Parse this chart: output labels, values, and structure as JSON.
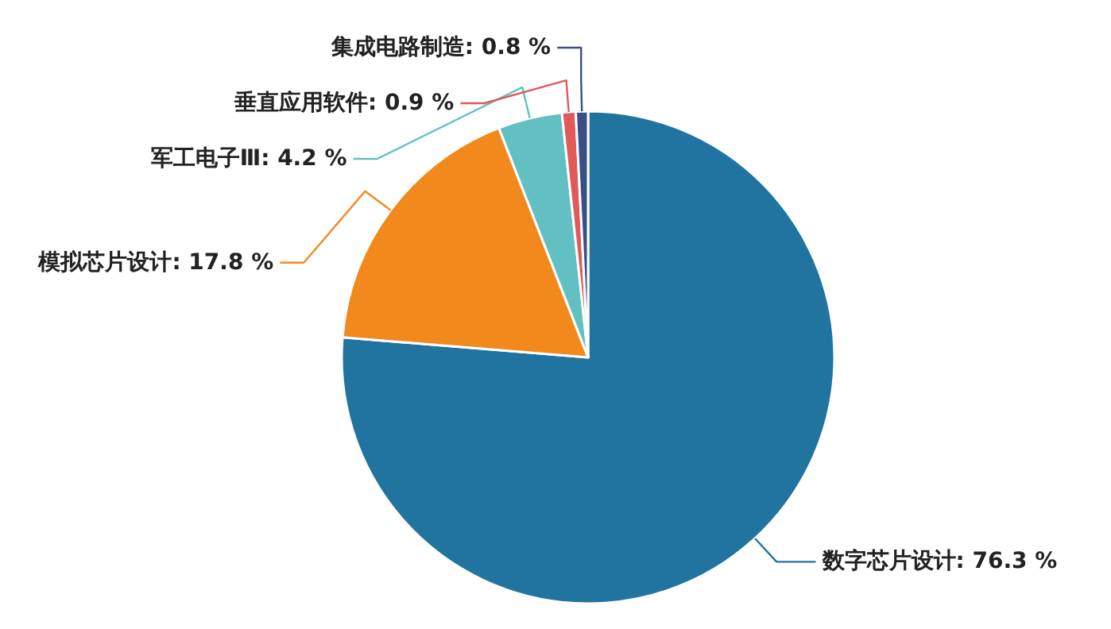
{
  "chart_data": {
    "type": "pie",
    "categories": [
      "数字芯片设计",
      "模拟芯片设计",
      "军工电子Ⅲ",
      "垂直应用软件",
      "集成电路制造"
    ],
    "values": [
      76.3,
      17.8,
      4.2,
      0.9,
      0.8
    ],
    "value_labels": [
      "76.3 %",
      "17.8 %",
      "4.2 %",
      "0.9 %",
      "0.8 %"
    ],
    "colors": [
      "#2274a0",
      "#f2891c",
      "#62c0c2",
      "#e05a5a",
      "#3a4f84"
    ]
  }
}
